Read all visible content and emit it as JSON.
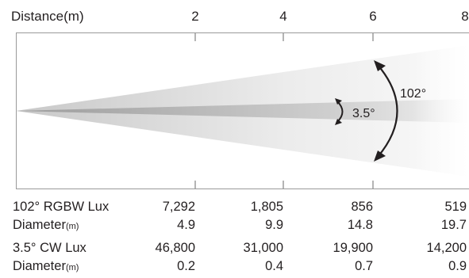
{
  "header": {
    "axis_label": "Distance(m)",
    "distances": [
      "2",
      "4",
      "6",
      "8"
    ]
  },
  "beams": {
    "wide_angle_label": "102°",
    "narrow_angle_label": "3.5°"
  },
  "table": {
    "rows": [
      {
        "label": "102° RGBW Lux",
        "unit": "",
        "values": [
          "7,292",
          "1,805",
          "856",
          "519"
        ]
      },
      {
        "label": "Diameter",
        "unit": "(m)",
        "values": [
          "4.9",
          "9.9",
          "14.8",
          "19.7"
        ]
      },
      {
        "label": "3.5° CW Lux",
        "unit": "",
        "values": [
          "46,800",
          "31,000",
          "19,900",
          "14,200"
        ]
      },
      {
        "label": "Diameter",
        "unit": "(m)",
        "values": [
          "0.2",
          "0.4",
          "0.7",
          "0.9"
        ]
      }
    ]
  },
  "colors": {
    "frame": "#9a9a9a",
    "beam_wide": "#d8d8d8",
    "beam_narrow": "#a8a8a8",
    "text": "#231f20"
  }
}
